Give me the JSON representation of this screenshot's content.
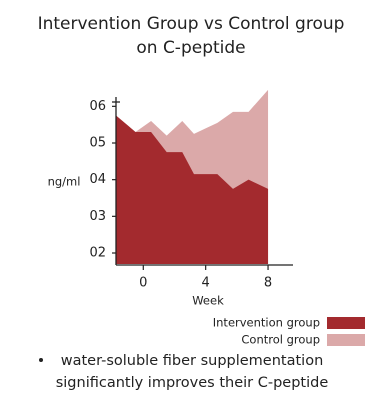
{
  "chart_data": {
    "type": "area",
    "title": [
      "Intervention Group vs Control group",
      "on C-peptide"
    ],
    "x_label": "Week",
    "y_label": "ng/ml",
    "x": [
      -1.75,
      -0.5,
      0.5,
      1.5,
      2.5,
      3.25,
      4.75,
      5.75,
      6.75,
      8
    ],
    "series": [
      {
        "name": "Intervention group",
        "color": "#a32a2e",
        "values": [
          0.575,
          0.53,
          0.53,
          0.475,
          0.475,
          0.415,
          0.415,
          0.375,
          0.4,
          0.375
        ]
      },
      {
        "name": "Control group",
        "color": "#dba9a9",
        "values": [
          0.575,
          0.53,
          0.56,
          0.52,
          0.56,
          0.525,
          0.555,
          0.585,
          0.585,
          0.645
        ]
      }
    ],
    "xlim": [
      -1.75,
      9.6
    ],
    "xticks": [
      0,
      4,
      8
    ],
    "ylim": [
      0.17,
      0.65
    ],
    "yticks": [
      {
        "value": 0.6,
        "label": "06"
      },
      {
        "value": 0.5,
        "label": "05"
      },
      {
        "value": 0.4,
        "label": "04"
      },
      {
        "value": 0.3,
        "label": "03"
      },
      {
        "value": 0.2,
        "label": "02"
      }
    ],
    "legend": "bottom-right",
    "annotation": [
      "water-soluble fiber supplementation",
      "significantly improves their C-peptide"
    ]
  }
}
